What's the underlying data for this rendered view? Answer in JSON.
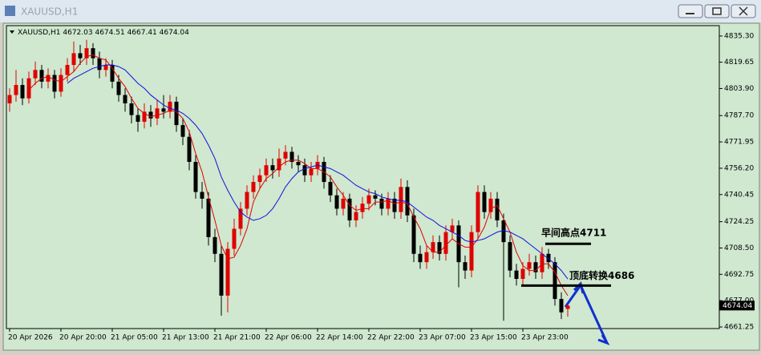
{
  "window": {
    "title": "XAUUSD,H1"
  },
  "chart_data": {
    "type": "candlestick",
    "title": "XAUUSD,H1",
    "up_color": "#e00000",
    "down_color": "#000000",
    "background": "#cfe8cf",
    "categories": [
      "20 Apr 2026",
      null,
      null,
      null,
      null,
      null,
      null,
      null,
      "20 Apr 20:00",
      null,
      null,
      null,
      null,
      null,
      null,
      null,
      "21 Apr 05:00",
      null,
      null,
      null,
      null,
      null,
      null,
      null,
      "21 Apr 13:00",
      null,
      null,
      null,
      null,
      null,
      null,
      null,
      "21 Apr 21:00",
      null,
      null,
      null,
      null,
      null,
      null,
      null,
      "22 Apr 06:00",
      null,
      null,
      null,
      null,
      null,
      null,
      null,
      "22 Apr 14:00",
      null,
      null,
      null,
      null,
      null,
      null,
      null,
      "22 Apr 22:00",
      null,
      null,
      null,
      null,
      null,
      null,
      null,
      "23 Apr 07:00",
      null,
      null,
      null,
      null,
      null,
      null,
      null,
      "23 Apr 15:00",
      null,
      null,
      null,
      null,
      null,
      null,
      null,
      "23 Apr 23:00",
      null,
      null,
      null,
      null,
      null,
      null,
      null
    ],
    "ohlc": [
      [
        4795,
        4804,
        4790,
        4800
      ],
      [
        4800,
        4815,
        4796,
        4806
      ],
      [
        4806,
        4810,
        4794,
        4798
      ],
      [
        4798,
        4814,
        4795,
        4810
      ],
      [
        4810,
        4820,
        4806,
        4815
      ],
      [
        4815,
        4818,
        4804,
        4808
      ],
      [
        4808,
        4816,
        4804,
        4812
      ],
      [
        4812,
        4815,
        4798,
        4802
      ],
      [
        4802,
        4816,
        4799,
        4812
      ],
      [
        4812,
        4822,
        4808,
        4818
      ],
      [
        4818,
        4832,
        4814,
        4825
      ],
      [
        4825,
        4830,
        4818,
        4822
      ],
      [
        4822,
        4833,
        4818,
        4828
      ],
      [
        4828,
        4831,
        4818,
        4822
      ],
      [
        4822,
        4826,
        4810,
        4815
      ],
      [
        4815,
        4822,
        4811,
        4818
      ],
      [
        4818,
        4821,
        4804,
        4808
      ],
      [
        4808,
        4812,
        4796,
        4800
      ],
      [
        4800,
        4804,
        4790,
        4795
      ],
      [
        4795,
        4799,
        4783,
        4788
      ],
      [
        4788,
        4792,
        4778,
        4784
      ],
      [
        4784,
        4795,
        4780,
        4790
      ],
      [
        4790,
        4794,
        4781,
        4786
      ],
      [
        4786,
        4797,
        4782,
        4792
      ],
      [
        4792,
        4800,
        4786,
        4790
      ],
      [
        4790,
        4800,
        4786,
        4796
      ],
      [
        4796,
        4799,
        4778,
        4782
      ],
      [
        4782,
        4786,
        4770,
        4775
      ],
      [
        4775,
        4779,
        4755,
        4760
      ],
      [
        4760,
        4764,
        4738,
        4742
      ],
      [
        4742,
        4748,
        4732,
        4738
      ],
      [
        4738,
        4742,
        4710,
        4715
      ],
      [
        4715,
        4720,
        4700,
        4705
      ],
      [
        4705,
        4710,
        4668,
        4680
      ],
      [
        4680,
        4712,
        4670,
        4708
      ],
      [
        4708,
        4726,
        4704,
        4720
      ],
      [
        4720,
        4736,
        4716,
        4732
      ],
      [
        4732,
        4746,
        4728,
        4742
      ],
      [
        4742,
        4752,
        4738,
        4748
      ],
      [
        4748,
        4756,
        4744,
        4752
      ],
      [
        4752,
        4762,
        4748,
        4758
      ],
      [
        4758,
        4762,
        4750,
        4755
      ],
      [
        4755,
        4768,
        4751,
        4762
      ],
      [
        4762,
        4770,
        4758,
        4766
      ],
      [
        4766,
        4769,
        4756,
        4760
      ],
      [
        4760,
        4764,
        4754,
        4758
      ],
      [
        4758,
        4762,
        4748,
        4752
      ],
      [
        4752,
        4760,
        4748,
        4756
      ],
      [
        4756,
        4764,
        4752,
        4760
      ],
      [
        4760,
        4763,
        4744,
        4748
      ],
      [
        4748,
        4752,
        4736,
        4740
      ],
      [
        4740,
        4744,
        4728,
        4732
      ],
      [
        4732,
        4742,
        4728,
        4738
      ],
      [
        4738,
        4741,
        4721,
        4725
      ],
      [
        4725,
        4734,
        4721,
        4730
      ],
      [
        4730,
        4739,
        4726,
        4735
      ],
      [
        4735,
        4744,
        4731,
        4740
      ],
      [
        4740,
        4743,
        4734,
        4738
      ],
      [
        4738,
        4741,
        4728,
        4732
      ],
      [
        4732,
        4742,
        4728,
        4738
      ],
      [
        4738,
        4742,
        4726,
        4730
      ],
      [
        4730,
        4750,
        4726,
        4745
      ],
      [
        4745,
        4749,
        4724,
        4728
      ],
      [
        4728,
        4732,
        4700,
        4705
      ],
      [
        4705,
        4710,
        4696,
        4700
      ],
      [
        4700,
        4710,
        4696,
        4706
      ],
      [
        4706,
        4716,
        4702,
        4712
      ],
      [
        4712,
        4716,
        4701,
        4705
      ],
      [
        4705,
        4722,
        4701,
        4718
      ],
      [
        4718,
        4726,
        4714,
        4722
      ],
      [
        4722,
        4725,
        4685,
        4700
      ],
      [
        4700,
        4704,
        4690,
        4695
      ],
      [
        4695,
        4722,
        4691,
        4718
      ],
      [
        4718,
        4746,
        4714,
        4742
      ],
      [
        4742,
        4746,
        4726,
        4730
      ],
      [
        4730,
        4742,
        4726,
        4738
      ],
      [
        4738,
        4742,
        4721,
        4725
      ],
      [
        4725,
        4729,
        4665,
        4712
      ],
      [
        4712,
        4716,
        4691,
        4695
      ],
      [
        4695,
        4699,
        4686,
        4690
      ],
      [
        4690,
        4700,
        4686,
        4696
      ],
      [
        4696,
        4705,
        4692,
        4700
      ],
      [
        4700,
        4704,
        4690,
        4694
      ],
      [
        4694,
        4709,
        4690,
        4705
      ],
      [
        4705,
        4708,
        4696,
        4700
      ],
      [
        4700,
        4703,
        4674,
        4678
      ],
      [
        4678,
        4682,
        4666,
        4670
      ],
      [
        4672.03,
        4674.51,
        4667.41,
        4674.04
      ]
    ],
    "series": [
      {
        "color": "#e00000",
        "values": [
          null,
          null,
          null,
          4803,
          4807,
          4810,
          4811,
          4809,
          4808,
          4811,
          4814,
          4819,
          4823,
          4824,
          4822,
          4821,
          4816,
          4810,
          4805,
          4798,
          4792,
          4789,
          4787,
          4788,
          4789,
          4791,
          4790,
          4786,
          4778,
          4765,
          4754,
          4739,
          4725,
          4710,
          4702,
          4703,
          4710,
          4720,
          4736,
          4744,
          4750,
          4753,
          4757,
          4760,
          4761,
          4761,
          4759,
          4756,
          4756,
          4754,
          4751,
          4745,
          4740,
          4734,
          4731,
          4732,
          4732,
          4736,
          4736,
          4737,
          4735,
          4736,
          4735,
          4727,
          4720,
          4710,
          4706,
          4706,
          4710,
          4714,
          4711,
          4709,
          4709,
          4714,
          4721,
          4732,
          4734,
          4726,
          4718,
          4706,
          4698,
          4695,
          4695,
          4699,
          4699,
          4694,
          4686,
          4680
        ]
      },
      {
        "color": "#1010e0",
        "values": [
          null,
          null,
          null,
          null,
          null,
          null,
          null,
          null,
          null,
          4807,
          4810,
          4812,
          4814,
          4816,
          4817,
          4818,
          4818,
          4817,
          4815,
          4811,
          4807,
          4804,
          4800,
          4797,
          4794,
          4792,
          4791,
          4789,
          4786,
          4782,
          4777,
          4770,
          4762,
          4751,
          4743,
          4736,
          4730,
          4727,
          4725,
          4726,
          4728,
          4732,
          4738,
          4745,
          4750,
          4754,
          4756,
          4757,
          4758,
          4757,
          4756,
          4754,
          4752,
          4749,
          4746,
          4744,
          4742,
          4741,
          4739,
          4738,
          4737,
          4737,
          4736,
          4733,
          4730,
          4727,
          4725,
          4722,
          4720,
          4718,
          4716,
          4713,
          4712,
          4713,
          4714,
          4716,
          4718,
          4719,
          4718,
          4716,
          4714,
          4711,
          4708,
          4705,
          4702,
          4699,
          4695,
          4690
        ]
      }
    ],
    "ylim": [
      4660.3,
      4841.5
    ],
    "yticks": [
      {
        "value": 4835.3,
        "label": "4835.30"
      },
      {
        "value": 4819.65,
        "label": "4819.65"
      },
      {
        "value": 4803.9,
        "label": "4803.90"
      },
      {
        "value": 4787.7,
        "label": "4787.70"
      },
      {
        "value": 4771.95,
        "label": "4771.95"
      },
      {
        "value": 4756.2,
        "label": "4756.20"
      },
      {
        "value": 4740.45,
        "label": "4740.45"
      },
      {
        "value": 4724.25,
        "label": "4724.25"
      },
      {
        "value": 4708.5,
        "label": "4708.50"
      },
      {
        "value": 4692.75,
        "label": "4692.75"
      },
      {
        "value": 4677,
        "label": "4677.00"
      },
      {
        "value": 4661.25,
        "label": "4661.25"
      }
    ],
    "levels": [
      {
        "value": 4711,
        "label": "早间高点4711"
      },
      {
        "value": 4686,
        "label": "顶底转换4686"
      }
    ]
  }
}
